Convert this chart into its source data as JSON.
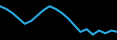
{
  "values": [
    85,
    83,
    80,
    76,
    72,
    74,
    78,
    82,
    85,
    83,
    80,
    76,
    71,
    66,
    68,
    64,
    67,
    65,
    67,
    66
  ],
  "line_color": "#29abe2",
  "line_width": 1.5,
  "bg_color": "#000000",
  "ylim_min": 60,
  "ylim_max": 90
}
